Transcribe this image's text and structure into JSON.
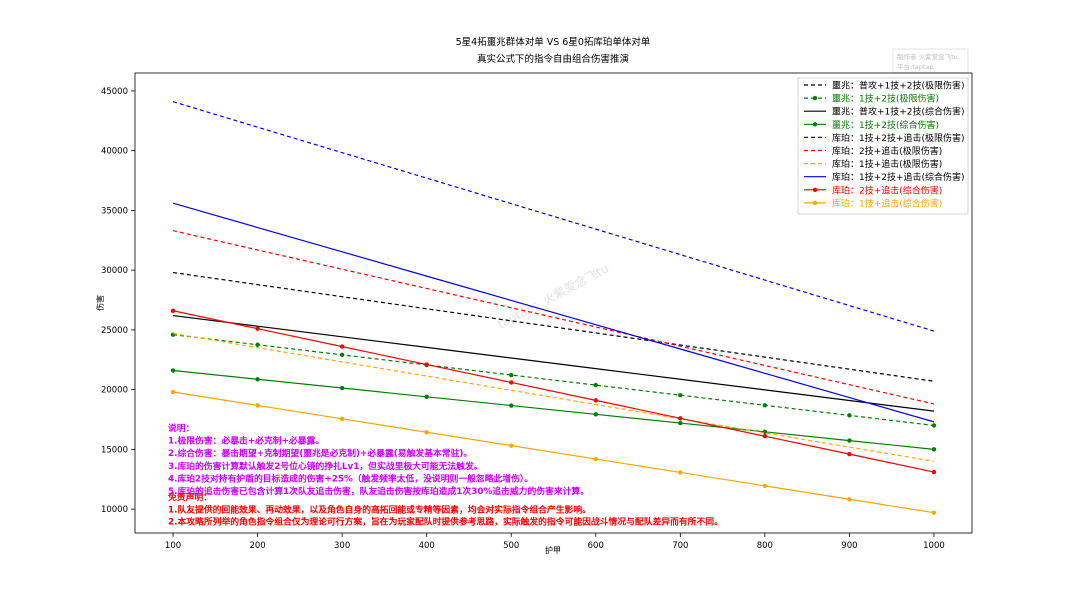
{
  "chart_data": {
    "type": "line",
    "title": "5星4拓噩兆群体对单 VS 6星0拓库珀单体对单",
    "subtitle": "真实公式下的指令自由组合伤害推演",
    "xlabel": "护甲",
    "ylabel": "伤害",
    "xlim": [
      55,
      1045
    ],
    "ylim": [
      8000,
      46500
    ],
    "xticks": [
      100,
      200,
      300,
      400,
      500,
      600,
      700,
      800,
      900,
      1000
    ],
    "yticks": [
      10000,
      15000,
      20000,
      25000,
      30000,
      35000,
      40000,
      45000
    ],
    "grid": false,
    "legend_position": "top-right",
    "x": [
      100,
      1000
    ],
    "series": [
      {
        "name": "噩兆：普攻+1技+2技(极限伤害)",
        "values": [
          29800,
          20700
        ],
        "color": "#000000",
        "dash": "dashed",
        "marker": false,
        "text_color": "#000000"
      },
      {
        "name": "噩兆：1技+2技(极限伤害)",
        "values": [
          24600,
          17000
        ],
        "color": "#008000",
        "dash": "dashed",
        "marker": true,
        "text_color": "#008000"
      },
      {
        "name": "噩兆：普攻+1技+2技(综合伤害)",
        "values": [
          26200,
          18200
        ],
        "color": "#000000",
        "dash": "solid",
        "marker": false,
        "text_color": "#000000"
      },
      {
        "name": "噩兆：1技+2技(综合伤害)",
        "values": [
          21600,
          15000
        ],
        "color": "#008000",
        "dash": "solid",
        "marker": true,
        "text_color": "#008000"
      },
      {
        "name": "库珀：1技+2技+追击(极限伤害)",
        "values": [
          44100,
          24900
        ],
        "color": "#0000ff",
        "dash": "dashed",
        "marker": false,
        "text_color": "#000000"
      },
      {
        "name": "库珀：2技+追击(极限伤害)",
        "values": [
          33300,
          18800
        ],
        "color": "#ff0000",
        "dash": "dashed",
        "marker": false,
        "text_color": "#000000"
      },
      {
        "name": "库珀：1技+追击(极限伤害)",
        "values": [
          24700,
          14000
        ],
        "color": "#ffa500",
        "dash": "dashed",
        "marker": false,
        "text_color": "#000000"
      },
      {
        "name": "库珀：1技+2技+追击(综合伤害)",
        "values": [
          35600,
          17300
        ],
        "color": "#0000ff",
        "dash": "solid",
        "marker": false,
        "text_color": "#000000"
      },
      {
        "name": "库珀：2技+追击(综合伤害)",
        "values": [
          26600,
          13100
        ],
        "color": "#ff0000",
        "dash": "solid",
        "marker": true,
        "text_color": "#ff0000"
      },
      {
        "name": "库珀：1技+追击(综合伤害)",
        "values": [
          19800,
          9700
        ],
        "color": "#ffa500",
        "dash": "solid",
        "marker": true,
        "text_color": "#ffa500"
      }
    ],
    "annotations": {
      "notes_color": "#cc00ff",
      "notes": [
        "说明：",
        "1.极限伤害：必暴击+必克制+必暴露。",
        "2.综合伤害：暴击期望+克制期望(噩兆是必克制)+必暴露(易触发基本常驻)。",
        "3.库珀的伤害计算默认触发2号位心镜的挣扎Lv1，但实战里极大可能无法触发。",
        "4.库珀2技对持有护盾的目标造成的伤害+25%（触发频率太低，没说明则一般忽略此增伤）。",
        "5.库珀的追击伤害已包含计算1次队友追击伤害，队友追击伤害按库珀造成1次30%追击威力的伤害来计算。"
      ],
      "disclaimer_color": "#ff0000",
      "disclaimer": [
        "免责声明：",
        "1.队友提供的回能效果、再动效果，以及角色自身的高拓回能或专精等因素，均会对实际指令组合产生影响。",
        "2.本攻略所列举的角色指令组合仅为理论可行方案，旨在为玩家配队时提供参考思路，实际触发的指令可能因战斗情况与配队差异而有所不同。"
      ],
      "watermark_box": [
        "制作者 火紫爱念飞tu",
        "平台:taptap"
      ],
      "watermark_center": "taptap：火紫爱念飞tu"
    }
  }
}
